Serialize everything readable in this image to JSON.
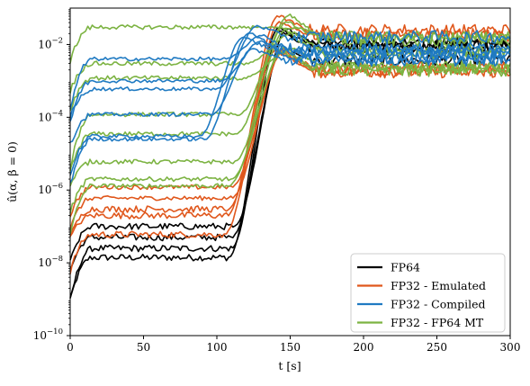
{
  "chart_data": {
    "type": "line",
    "xlabel": "t [s]",
    "ylabel": "û(α, β = 0)",
    "xlim": [
      0,
      300
    ],
    "ylim": [
      1e-10,
      0.1
    ],
    "yscale": "log",
    "grid": false,
    "legend_placement": "bottom-right",
    "x_ticks": [
      0,
      50,
      100,
      150,
      200,
      250,
      300
    ],
    "y_ticks": [
      {
        "value": 1e-10,
        "base": "10",
        "exponent": "−10"
      },
      {
        "value": 1e-08,
        "base": "10",
        "exponent": "−8"
      },
      {
        "value": 1e-06,
        "base": "10",
        "exponent": "−6"
      },
      {
        "value": 0.0001,
        "base": "10",
        "exponent": "−4"
      },
      {
        "value": 0.01,
        "base": "10",
        "exponent": "−2"
      }
    ],
    "series": [
      {
        "name": "FP64",
        "color": "#000000",
        "modes": [
          {
            "plateau": 1.4e-08,
            "rise_start": 108,
            "rise_end": 142
          },
          {
            "plateau": 2.5e-08,
            "rise_start": 110,
            "rise_end": 143
          },
          {
            "plateau": 5e-08,
            "rise_start": 110,
            "rise_end": 145
          },
          {
            "plateau": 1e-07,
            "rise_start": 112,
            "rise_end": 148
          }
        ]
      },
      {
        "name": "FP32 - Emulated",
        "color": "#e0571c",
        "modes": [
          {
            "plateau": 6e-08,
            "rise_start": 105,
            "rise_end": 140
          },
          {
            "plateau": 2e-07,
            "rise_start": 107,
            "rise_end": 142
          },
          {
            "plateau": 3e-07,
            "rise_start": 108,
            "rise_end": 143
          },
          {
            "plateau": 6e-07,
            "rise_start": 110,
            "rise_end": 145
          },
          {
            "plateau": 1.2e-06,
            "rise_start": 110,
            "rise_end": 146
          }
        ]
      },
      {
        "name": "FP32 - Compiled",
        "color": "#1f7ac2",
        "modes": [
          {
            "plateau": 3e-05,
            "rise_start": 88,
            "rise_end": 118
          },
          {
            "plateau": 2.5e-05,
            "rise_start": 92,
            "rise_end": 122
          },
          {
            "plateau": 0.00012,
            "rise_start": 96,
            "rise_end": 125
          },
          {
            "plateau": 0.0006,
            "rise_start": 100,
            "rise_end": 128
          },
          {
            "plateau": 0.001,
            "rise_start": 103,
            "rise_end": 130
          },
          {
            "plateau": 0.004,
            "rise_start": 106,
            "rise_end": 132
          }
        ]
      },
      {
        "name": "FP32 - FP64 MT",
        "color": "#7cb342",
        "modes": [
          {
            "plateau": 1.3e-06,
            "rise_start": 108,
            "rise_end": 145
          },
          {
            "plateau": 2e-06,
            "rise_start": 110,
            "rise_end": 146
          },
          {
            "plateau": 6e-06,
            "rise_start": 112,
            "rise_end": 147
          },
          {
            "plateau": 3.5e-05,
            "rise_start": 113,
            "rise_end": 148
          },
          {
            "plateau": 0.00012,
            "rise_start": 115,
            "rise_end": 150
          },
          {
            "plateau": 0.0012,
            "rise_start": 118,
            "rise_end": 152
          },
          {
            "plateau": 0.003,
            "rise_start": 120,
            "rise_end": 153
          },
          {
            "plateau": 0.03,
            "rise_start": 125,
            "rise_end": 160
          }
        ]
      }
    ],
    "saturation_band": [
      0.0015,
      0.03
    ]
  }
}
